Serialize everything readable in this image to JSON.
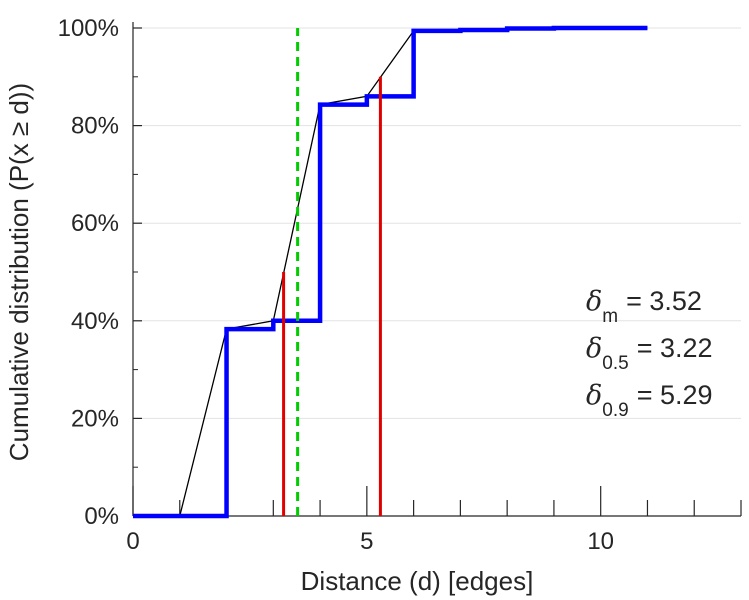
{
  "chart_data": {
    "type": "line",
    "title": "",
    "xlabel": "Distance (d) [edges]",
    "ylabel": "Cumulative distribution (P(x ≥ d))",
    "xlim": [
      0,
      13
    ],
    "ylim": [
      0,
      100
    ],
    "x_ticks": [
      0,
      5,
      10
    ],
    "x_tick_labels": [
      "0",
      "5",
      "10"
    ],
    "y_ticks": [
      0,
      20,
      40,
      60,
      80,
      100
    ],
    "y_tick_labels": [
      "0%",
      "20%",
      "40%",
      "60%",
      "80%",
      "100%"
    ],
    "grid": true,
    "legend": "none",
    "series": [
      {
        "style": "step",
        "color": "#0000ff",
        "x": [
          0,
          1,
          2,
          3,
          4,
          5,
          6,
          7,
          8,
          9,
          10,
          11
        ],
        "y": [
          0,
          0,
          38.3,
          40,
          84.3,
          86,
          99.4,
          99.6,
          99.9,
          100,
          100,
          100
        ]
      },
      {
        "style": "line",
        "color": "#000000",
        "x": [
          1,
          2,
          3,
          4,
          5,
          6,
          7,
          8,
          9,
          10,
          11
        ],
        "y": [
          0,
          38.3,
          40,
          84.3,
          86,
          99.4,
          99.6,
          99.9,
          100,
          100,
          100
        ]
      }
    ],
    "vlines": [
      {
        "x": 3.52,
        "ymin": 0,
        "ymax": 100,
        "color": "#00cc00",
        "dashed": true
      },
      {
        "x": 3.22,
        "ymin": 0,
        "ymax": 50,
        "color": "#e00000",
        "dashed": false
      },
      {
        "x": 5.29,
        "ymin": 0,
        "ymax": 90,
        "color": "#e00000",
        "dashed": false
      }
    ],
    "annotations": [
      {
        "symbol": "δ",
        "sub": "m",
        "text": "= 3.52"
      },
      {
        "symbol": "δ",
        "sub": "0.5",
        "text": "= 3.22"
      },
      {
        "symbol": "δ",
        "sub": "0.9",
        "text": "= 5.29"
      }
    ]
  }
}
